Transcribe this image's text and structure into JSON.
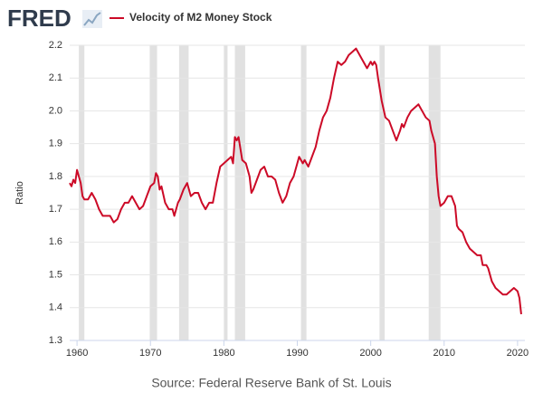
{
  "logo": "FRED",
  "chart_data": {
    "type": "line",
    "y_label": "Ratio",
    "source": "Source: Federal Reserve Bank of St. Louis",
    "x": [
      1959.0,
      1959.25,
      1959.5,
      1959.75,
      1960.0,
      1960.25,
      1960.5,
      1960.75,
      1961.0,
      1961.5,
      1962.0,
      1962.5,
      1963.0,
      1963.5,
      1964.0,
      1964.5,
      1965.0,
      1965.5,
      1966.0,
      1966.5,
      1967.0,
      1967.5,
      1968.0,
      1968.5,
      1969.0,
      1969.5,
      1970.0,
      1970.5,
      1970.75,
      1971.0,
      1971.25,
      1971.5,
      1972.0,
      1972.5,
      1973.0,
      1973.25,
      1973.75,
      1974.0,
      1974.5,
      1975.0,
      1975.5,
      1976.0,
      1976.5,
      1977.0,
      1977.5,
      1978.0,
      1978.5,
      1979.0,
      1979.5,
      1980.0,
      1980.5,
      1981.0,
      1981.25,
      1981.5,
      1981.75,
      1982.0,
      1982.5,
      1983.0,
      1983.5,
      1983.75,
      1984.0,
      1984.5,
      1985.0,
      1985.5,
      1986.0,
      1986.5,
      1987.0,
      1987.5,
      1988.0,
      1988.5,
      1989.0,
      1989.5,
      1990.0,
      1990.25,
      1990.75,
      1991.0,
      1991.5,
      1992.0,
      1992.5,
      1993.0,
      1993.5,
      1994.0,
      1994.5,
      1995.0,
      1995.5,
      1996.0,
      1996.5,
      1997.0,
      1997.5,
      1998.0,
      1998.5,
      1999.0,
      1999.5,
      2000.0,
      2000.25,
      2000.5,
      2000.75,
      2001.0,
      2001.5,
      2002.0,
      2002.5,
      2003.0,
      2003.5,
      2004.0,
      2004.25,
      2004.5,
      2005.0,
      2005.5,
      2006.0,
      2006.5,
      2007.0,
      2007.5,
      2008.0,
      2008.25,
      2008.75,
      2009.0,
      2009.25,
      2009.5,
      2010.0,
      2010.5,
      2011.0,
      2011.5,
      2011.75,
      2012.0,
      2012.5,
      2013.0,
      2013.5,
      2014.0,
      2014.5,
      2015.0,
      2015.25,
      2015.75,
      2016.0,
      2016.5,
      2017.0,
      2017.5,
      2018.0,
      2018.5,
      2019.0,
      2019.5,
      2020.0,
      2020.25,
      2020.5
    ],
    "series": [
      {
        "name": "Velocity of M2 Money Stock",
        "color": "#cc0a27",
        "values": [
          1.78,
          1.77,
          1.79,
          1.78,
          1.82,
          1.8,
          1.78,
          1.74,
          1.73,
          1.73,
          1.75,
          1.73,
          1.7,
          1.68,
          1.68,
          1.68,
          1.66,
          1.67,
          1.7,
          1.72,
          1.72,
          1.74,
          1.72,
          1.7,
          1.71,
          1.74,
          1.77,
          1.78,
          1.81,
          1.8,
          1.76,
          1.77,
          1.72,
          1.7,
          1.7,
          1.68,
          1.72,
          1.73,
          1.76,
          1.78,
          1.74,
          1.75,
          1.75,
          1.72,
          1.7,
          1.72,
          1.72,
          1.78,
          1.83,
          1.84,
          1.85,
          1.86,
          1.84,
          1.92,
          1.91,
          1.92,
          1.85,
          1.84,
          1.8,
          1.75,
          1.76,
          1.79,
          1.82,
          1.83,
          1.8,
          1.8,
          1.79,
          1.75,
          1.72,
          1.74,
          1.78,
          1.8,
          1.84,
          1.86,
          1.84,
          1.85,
          1.83,
          1.86,
          1.89,
          1.94,
          1.98,
          2.0,
          2.04,
          2.1,
          2.15,
          2.14,
          2.15,
          2.17,
          2.18,
          2.19,
          2.17,
          2.15,
          2.13,
          2.15,
          2.14,
          2.15,
          2.14,
          2.1,
          2.03,
          1.98,
          1.97,
          1.94,
          1.91,
          1.94,
          1.96,
          1.95,
          1.98,
          2.0,
          2.01,
          2.02,
          2.0,
          1.98,
          1.97,
          1.94,
          1.9,
          1.8,
          1.74,
          1.71,
          1.72,
          1.74,
          1.74,
          1.71,
          1.65,
          1.64,
          1.63,
          1.6,
          1.58,
          1.57,
          1.56,
          1.56,
          1.53,
          1.53,
          1.52,
          1.48,
          1.46,
          1.45,
          1.44,
          1.44,
          1.45,
          1.46,
          1.45,
          1.43,
          1.38
        ]
      }
    ],
    "recessions": [
      [
        1960.25,
        1961.0
      ],
      [
        1969.9,
        1970.9
      ],
      [
        1973.9,
        1975.2
      ],
      [
        1980.0,
        1980.5
      ],
      [
        1981.5,
        1982.9
      ],
      [
        1990.5,
        1991.25
      ],
      [
        2001.2,
        2001.9
      ],
      [
        2007.9,
        2009.5
      ]
    ],
    "recession_color": "#e1e1e1",
    "xlim": [
      1959,
      2021
    ],
    "xticks": [
      1960,
      1970,
      1980,
      1990,
      2000,
      2010,
      2020
    ],
    "ylim": [
      1.3,
      2.2
    ],
    "yticks": [
      1.3,
      1.4,
      1.5,
      1.6,
      1.7,
      1.8,
      1.9,
      {
        "value": 2,
        "label": "2.0"
      },
      2.1,
      2.2
    ],
    "grid": true
  }
}
